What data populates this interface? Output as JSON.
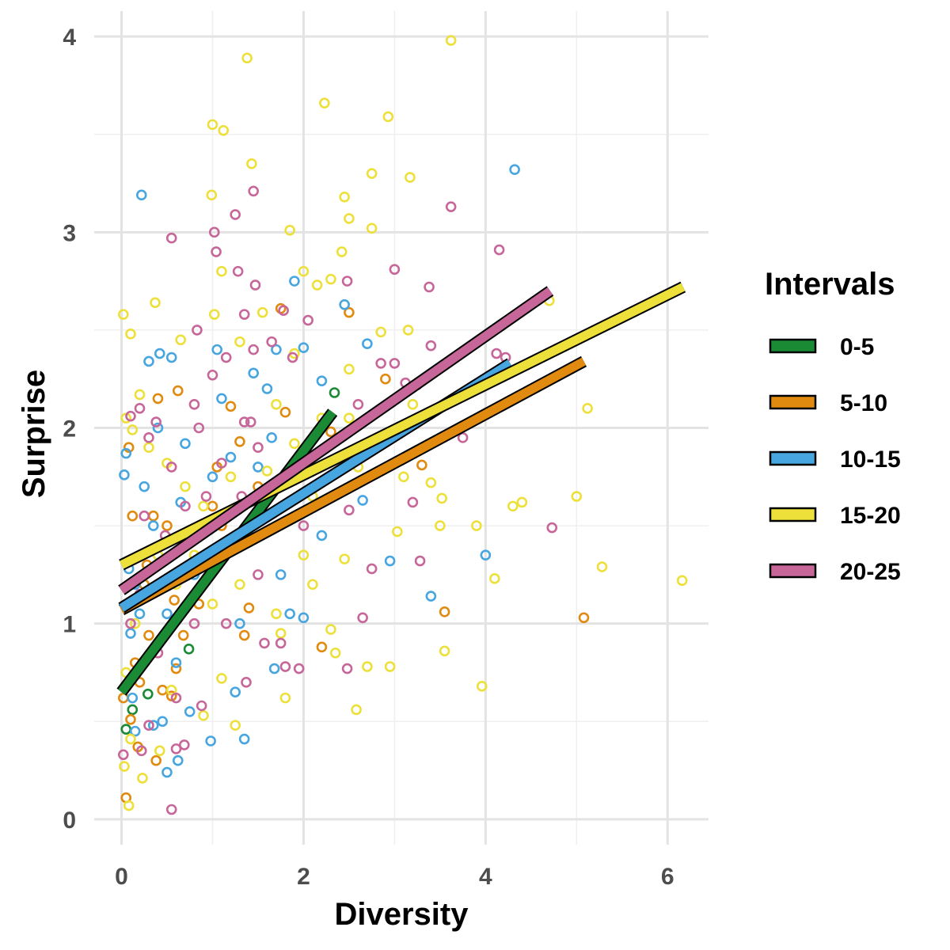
{
  "chart_data": {
    "type": "scatter",
    "xlabel": "Diversity",
    "ylabel": "Surprise",
    "xlim": [
      -0.3,
      6.45
    ],
    "ylim": [
      -0.13,
      4.13
    ],
    "x_ticks": [
      0,
      2,
      4,
      6
    ],
    "y_ticks": [
      0,
      1,
      2,
      3,
      4
    ],
    "grid": true,
    "legend": {
      "title": "Intervals",
      "position": "right"
    },
    "series": [
      {
        "name": "0-5",
        "color": "#1a8a35",
        "fit": {
          "x": [
            0.0,
            2.32
          ],
          "y": [
            0.65,
            2.08
          ]
        },
        "points": [
          [
            2.34,
            2.18
          ],
          [
            0.74,
            0.87
          ],
          [
            0.29,
            0.64
          ],
          [
            0.05,
            0.46
          ],
          [
            0.12,
            0.56
          ]
        ]
      },
      {
        "name": "5-10",
        "color": "#e08a10",
        "fit": {
          "x": [
            0.0,
            5.08
          ],
          "y": [
            1.07,
            2.34
          ]
        },
        "points": [
          [
            0.02,
            0.62
          ],
          [
            0.05,
            0.11
          ],
          [
            0.1,
            0.51
          ],
          [
            0.15,
            0.8
          ],
          [
            0.2,
            0.7
          ],
          [
            0.25,
            1.2
          ],
          [
            0.3,
            0.94
          ],
          [
            0.35,
            1.55
          ],
          [
            0.4,
            2.15
          ],
          [
            0.45,
            0.66
          ],
          [
            0.5,
            1.5
          ],
          [
            0.55,
            0.63
          ],
          [
            0.6,
            0.77
          ],
          [
            0.62,
            2.19
          ],
          [
            0.68,
            0.94
          ],
          [
            0.76,
            1.3
          ],
          [
            0.85,
            1.1
          ],
          [
            1.0,
            1.6
          ],
          [
            1.05,
            1.8
          ],
          [
            1.1,
            1.5
          ],
          [
            1.2,
            2.11
          ],
          [
            1.3,
            1.93
          ],
          [
            1.4,
            1.08
          ],
          [
            1.35,
            0.94
          ],
          [
            1.5,
            1.7
          ],
          [
            1.75,
            2.61
          ],
          [
            1.8,
            2.08
          ],
          [
            2.2,
            0.88
          ],
          [
            2.3,
            1.98
          ],
          [
            2.5,
            2.59
          ],
          [
            2.9,
            2.25
          ],
          [
            3.3,
            1.81
          ],
          [
            3.55,
            1.06
          ],
          [
            5.08,
            1.03
          ],
          [
            0.08,
            1.9
          ],
          [
            0.18,
            0.37
          ],
          [
            0.28,
            1.3
          ],
          [
            0.58,
            1.12
          ],
          [
            0.38,
            0.3
          ],
          [
            0.12,
            1.55
          ]
        ]
      },
      {
        "name": "10-15",
        "color": "#47a5e0",
        "fit": {
          "x": [
            0.0,
            4.27
          ],
          "y": [
            1.08,
            2.33
          ]
        },
        "points": [
          [
            0.22,
            3.19
          ],
          [
            4.32,
            3.32
          ],
          [
            0.03,
            1.76
          ],
          [
            0.05,
            1.87
          ],
          [
            0.08,
            1.28
          ],
          [
            0.1,
            0.95
          ],
          [
            0.12,
            0.62
          ],
          [
            0.15,
            0.45
          ],
          [
            0.2,
            1.05
          ],
          [
            0.25,
            1.7
          ],
          [
            0.3,
            2.34
          ],
          [
            0.35,
            1.5
          ],
          [
            0.4,
            2.0
          ],
          [
            0.42,
            2.38
          ],
          [
            0.45,
            0.5
          ],
          [
            0.5,
            1.05
          ],
          [
            0.55,
            2.36
          ],
          [
            0.6,
            0.8
          ],
          [
            0.65,
            1.62
          ],
          [
            0.7,
            1.92
          ],
          [
            0.75,
            0.55
          ],
          [
            0.8,
            1.25
          ],
          [
            0.9,
            1.5
          ],
          [
            1.0,
            1.75
          ],
          [
            1.05,
            2.4
          ],
          [
            1.1,
            2.15
          ],
          [
            1.2,
            1.85
          ],
          [
            1.25,
            0.65
          ],
          [
            1.3,
            1.0
          ],
          [
            1.35,
            0.41
          ],
          [
            1.4,
            1.45
          ],
          [
            1.45,
            2.28
          ],
          [
            1.5,
            1.8
          ],
          [
            1.6,
            2.2
          ],
          [
            1.65,
            1.95
          ],
          [
            1.7,
            2.4
          ],
          [
            1.75,
            1.25
          ],
          [
            1.85,
            1.05
          ],
          [
            1.9,
            2.75
          ],
          [
            2.0,
            1.03
          ],
          [
            2.0,
            2.41
          ],
          [
            2.2,
            2.24
          ],
          [
            2.45,
            2.63
          ],
          [
            2.65,
            1.63
          ],
          [
            2.7,
            2.43
          ],
          [
            2.95,
            1.32
          ],
          [
            3.4,
            1.14
          ],
          [
            4.0,
            1.35
          ],
          [
            0.5,
            0.24
          ],
          [
            0.98,
            0.4
          ],
          [
            0.62,
            0.3
          ],
          [
            0.15,
            1.2
          ],
          [
            0.35,
            0.48
          ],
          [
            1.68,
            0.77
          ],
          [
            2.2,
            1.45
          ]
        ]
      },
      {
        "name": "15-20",
        "color": "#ede03a",
        "fit": {
          "x": [
            0.0,
            6.17
          ],
          "y": [
            1.3,
            2.72
          ]
        },
        "points": [
          [
            3.62,
            3.98
          ],
          [
            1.38,
            3.89
          ],
          [
            2.23,
            3.66
          ],
          [
            2.93,
            3.59
          ],
          [
            1.0,
            3.55
          ],
          [
            1.12,
            3.52
          ],
          [
            1.43,
            3.35
          ],
          [
            2.75,
            3.3
          ],
          [
            3.17,
            3.28
          ],
          [
            0.99,
            3.19
          ],
          [
            2.45,
            3.18
          ],
          [
            2.5,
            3.07
          ],
          [
            2.75,
            3.02
          ],
          [
            1.85,
            3.01
          ],
          [
            2.42,
            2.9
          ],
          [
            1.1,
            2.8
          ],
          [
            2.0,
            2.8
          ],
          [
            2.3,
            2.76
          ],
          [
            2.15,
            2.73
          ],
          [
            0.37,
            2.64
          ],
          [
            1.55,
            2.59
          ],
          [
            0.02,
            2.58
          ],
          [
            1.02,
            2.58
          ],
          [
            0.1,
            2.48
          ],
          [
            0.65,
            2.45
          ],
          [
            1.3,
            2.44
          ],
          [
            2.85,
            2.49
          ],
          [
            3.15,
            2.5
          ],
          [
            1.9,
            2.38
          ],
          [
            2.5,
            2.3
          ],
          [
            0.2,
            2.17
          ],
          [
            1.7,
            2.12
          ],
          [
            2.2,
            2.05
          ],
          [
            0.05,
            2.05
          ],
          [
            0.12,
            1.99
          ],
          [
            0.3,
            1.9
          ],
          [
            0.5,
            1.82
          ],
          [
            0.7,
            1.7
          ],
          [
            0.9,
            1.6
          ],
          [
            1.2,
            1.75
          ],
          [
            1.6,
            1.78
          ],
          [
            1.9,
            1.92
          ],
          [
            2.5,
            2.05
          ],
          [
            3.1,
            1.75
          ],
          [
            3.2,
            2.12
          ],
          [
            3.4,
            1.72
          ],
          [
            3.5,
            1.5
          ],
          [
            3.52,
            1.64
          ],
          [
            3.9,
            1.5
          ],
          [
            4.1,
            1.23
          ],
          [
            4.3,
            1.6
          ],
          [
            4.4,
            1.62
          ],
          [
            5.0,
            1.65
          ],
          [
            5.12,
            2.1
          ],
          [
            5.28,
            1.29
          ],
          [
            6.16,
            1.22
          ],
          [
            3.03,
            1.47
          ],
          [
            2.7,
            0.78
          ],
          [
            2.95,
            0.78
          ],
          [
            3.55,
            0.86
          ],
          [
            3.96,
            0.68
          ],
          [
            2.58,
            0.56
          ],
          [
            1.8,
            0.62
          ],
          [
            1.1,
            0.72
          ],
          [
            1.25,
            0.48
          ],
          [
            0.9,
            0.53
          ],
          [
            0.55,
            0.66
          ],
          [
            0.42,
            0.35
          ],
          [
            0.23,
            0.21
          ],
          [
            0.08,
            0.07
          ],
          [
            0.03,
            0.27
          ],
          [
            0.1,
            0.41
          ],
          [
            0.05,
            0.75
          ],
          [
            0.15,
            1.0
          ],
          [
            0.4,
            1.35
          ],
          [
            0.6,
            1.2
          ],
          [
            0.8,
            1.35
          ],
          [
            1.0,
            1.1
          ],
          [
            1.3,
            1.2
          ],
          [
            1.7,
            1.05
          ],
          [
            2.1,
            1.2
          ],
          [
            2.3,
            0.97
          ],
          [
            2.45,
            1.33
          ],
          [
            2.35,
            0.85
          ],
          [
            1.5,
            1.65
          ],
          [
            4.7,
            2.65
          ],
          [
            2.1,
            1.65
          ],
          [
            1.75,
            0.95
          ],
          [
            2.6,
            1.8
          ],
          [
            2.0,
            1.35
          ]
        ]
      },
      {
        "name": "20-25",
        "color": "#c76699",
        "fit": {
          "x": [
            0.0,
            4.71
          ],
          "y": [
            1.17,
            2.7
          ]
        },
        "points": [
          [
            0.55,
            2.97
          ],
          [
            1.02,
            3.0
          ],
          [
            1.25,
            3.09
          ],
          [
            1.45,
            3.21
          ],
          [
            1.04,
            2.9
          ],
          [
            3.62,
            3.13
          ],
          [
            4.15,
            2.91
          ],
          [
            1.28,
            2.8
          ],
          [
            3.0,
            2.81
          ],
          [
            2.48,
            2.75
          ],
          [
            1.47,
            2.73
          ],
          [
            3.38,
            2.72
          ],
          [
            1.35,
            2.58
          ],
          [
            1.78,
            2.6
          ],
          [
            2.05,
            2.55
          ],
          [
            0.83,
            2.5
          ],
          [
            1.45,
            2.4
          ],
          [
            1.65,
            2.44
          ],
          [
            3.4,
            2.42
          ],
          [
            4.12,
            2.38
          ],
          [
            4.22,
            2.36
          ],
          [
            2.85,
            2.33
          ],
          [
            1.88,
            2.36
          ],
          [
            1.15,
            2.36
          ],
          [
            1.0,
            2.27
          ],
          [
            3.12,
            2.23
          ],
          [
            0.2,
            2.1
          ],
          [
            0.8,
            2.12
          ],
          [
            2.6,
            2.12
          ],
          [
            0.1,
            2.06
          ],
          [
            0.38,
            2.03
          ],
          [
            1.42,
            2.03
          ],
          [
            1.35,
            2.03
          ],
          [
            0.85,
            2.0
          ],
          [
            0.3,
            1.95
          ],
          [
            3.75,
            1.95
          ],
          [
            1.5,
            1.9
          ],
          [
            0.55,
            1.8
          ],
          [
            1.1,
            1.82
          ],
          [
            1.32,
            1.65
          ],
          [
            0.25,
            1.55
          ],
          [
            0.48,
            1.45
          ],
          [
            0.7,
            1.6
          ],
          [
            0.93,
            1.65
          ],
          [
            1.1,
            1.35
          ],
          [
            1.5,
            1.25
          ],
          [
            2.0,
            1.5
          ],
          [
            2.5,
            1.58
          ],
          [
            3.2,
            1.62
          ],
          [
            4.73,
            1.49
          ],
          [
            2.75,
            1.28
          ],
          [
            2.65,
            1.03
          ],
          [
            2.48,
            0.77
          ],
          [
            1.57,
            0.9
          ],
          [
            1.75,
            0.9
          ],
          [
            1.8,
            0.78
          ],
          [
            1.95,
            0.77
          ],
          [
            1.37,
            0.7
          ],
          [
            0.6,
            0.36
          ],
          [
            0.69,
            0.38
          ],
          [
            0.55,
            0.05
          ],
          [
            0.22,
            0.35
          ],
          [
            0.3,
            0.48
          ],
          [
            0.02,
            0.33
          ],
          [
            0.88,
            0.58
          ],
          [
            0.6,
            0.62
          ],
          [
            0.4,
            0.85
          ],
          [
            0.1,
            1.0
          ],
          [
            0.2,
            1.15
          ],
          [
            0.8,
            1.0
          ],
          [
            1.15,
            1.0
          ],
          [
            3.28,
            1.32
          ],
          [
            3.0,
            2.33
          ],
          [
            3.25,
            2.22
          ]
        ]
      }
    ]
  }
}
